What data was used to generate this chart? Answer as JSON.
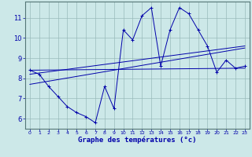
{
  "xlabel": "Graphe des températures (°c)",
  "background_color": "#cce8e8",
  "line_color": "#0000aa",
  "grid_color": "#99bbbb",
  "xlim": [
    -0.5,
    23.5
  ],
  "ylim": [
    5.5,
    11.8
  ],
  "yticks": [
    6,
    7,
    8,
    9,
    10,
    11
  ],
  "xticks": [
    0,
    1,
    2,
    3,
    4,
    5,
    6,
    7,
    8,
    9,
    10,
    11,
    12,
    13,
    14,
    15,
    16,
    17,
    18,
    19,
    20,
    21,
    22,
    23
  ],
  "series1_x": [
    0,
    1,
    2,
    3,
    4,
    5,
    6,
    7,
    8,
    9,
    10,
    11,
    12,
    13,
    14,
    15,
    16,
    17,
    18,
    19,
    20,
    21,
    22,
    23
  ],
  "series1_y": [
    8.4,
    8.2,
    7.6,
    7.1,
    6.6,
    6.3,
    6.1,
    5.8,
    7.6,
    6.5,
    10.4,
    9.9,
    11.1,
    11.5,
    8.6,
    10.4,
    11.5,
    11.2,
    10.4,
    9.6,
    8.3,
    8.9,
    8.5,
    8.6
  ],
  "series2_x": [
    0,
    23
  ],
  "series2_y": [
    8.4,
    8.5
  ],
  "series3_x": [
    0,
    23
  ],
  "series3_y": [
    8.2,
    9.6
  ],
  "series4_x": [
    0,
    23
  ],
  "series4_y": [
    7.7,
    9.5
  ]
}
